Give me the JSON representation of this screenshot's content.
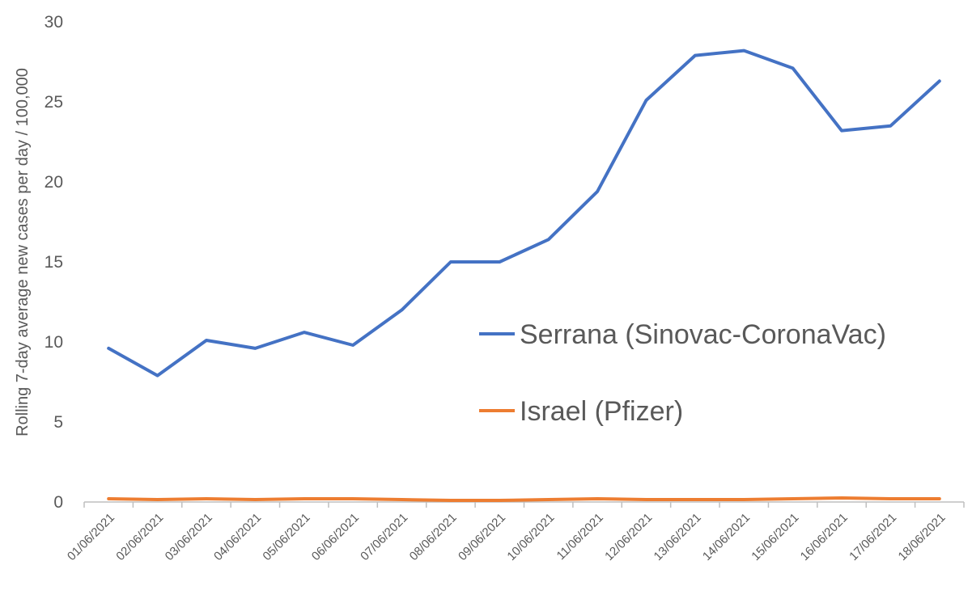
{
  "chart_data": {
    "type": "line",
    "title": "",
    "xlabel": "",
    "ylabel": "Rolling 7-day average new cases per day / 100,000",
    "ylim": [
      0,
      30
    ],
    "yticks": [
      0,
      5,
      10,
      15,
      20,
      25,
      30
    ],
    "grid": false,
    "legend_position": "right-middle",
    "categories": [
      "01/06/2021",
      "02/06/2021",
      "03/06/2021",
      "04/06/2021",
      "05/06/2021",
      "06/06/2021",
      "07/06/2021",
      "08/06/2021",
      "09/06/2021",
      "10/06/2021",
      "11/06/2021",
      "12/06/2021",
      "13/06/2021",
      "14/06/2021",
      "15/06/2021",
      "16/06/2021",
      "17/06/2021",
      "18/06/2021"
    ],
    "series": [
      {
        "name": "Serrana (Sinovac-CoronaVac)",
        "color": "#4472c4",
        "values": [
          9.6,
          7.9,
          10.1,
          9.6,
          10.6,
          9.8,
          12.0,
          15.0,
          15.0,
          16.4,
          19.4,
          25.1,
          27.9,
          28.2,
          27.1,
          23.2,
          23.5,
          26.3
        ]
      },
      {
        "name": "Israel (Pfizer)",
        "color": "#ed7d31",
        "values": [
          0.2,
          0.15,
          0.2,
          0.15,
          0.2,
          0.2,
          0.15,
          0.1,
          0.1,
          0.15,
          0.2,
          0.15,
          0.15,
          0.15,
          0.2,
          0.25,
          0.2,
          0.2
        ]
      }
    ]
  }
}
